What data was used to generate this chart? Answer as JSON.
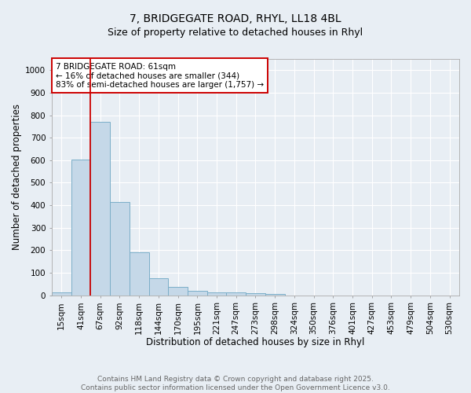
{
  "title_line1": "7, BRIDGEGATE ROAD, RHYL, LL18 4BL",
  "title_line2": "Size of property relative to detached houses in Rhyl",
  "xlabel": "Distribution of detached houses by size in Rhyl",
  "ylabel": "Number of detached properties",
  "categories": [
    "15sqm",
    "41sqm",
    "67sqm",
    "92sqm",
    "118sqm",
    "144sqm",
    "170sqm",
    "195sqm",
    "221sqm",
    "247sqm",
    "273sqm",
    "298sqm",
    "324sqm",
    "350sqm",
    "376sqm",
    "401sqm",
    "427sqm",
    "453sqm",
    "479sqm",
    "504sqm",
    "530sqm"
  ],
  "values": [
    13,
    602,
    770,
    413,
    192,
    75,
    37,
    18,
    13,
    13,
    8,
    5,
    0,
    0,
    0,
    0,
    0,
    0,
    0,
    0,
    0
  ],
  "bar_color": "#c5d8e8",
  "bar_edge_color": "#7baec8",
  "vline_x_index": 2,
  "vline_color": "#cc0000",
  "annotation_text": "7 BRIDGEGATE ROAD: 61sqm\n← 16% of detached houses are smaller (344)\n83% of semi-detached houses are larger (1,757) →",
  "annotation_box_facecolor": "#ffffff",
  "annotation_box_edgecolor": "#cc0000",
  "ylim": [
    0,
    1050
  ],
  "yticks": [
    0,
    100,
    200,
    300,
    400,
    500,
    600,
    700,
    800,
    900,
    1000
  ],
  "footer_text": "Contains HM Land Registry data © Crown copyright and database right 2025.\nContains public sector information licensed under the Open Government Licence v3.0.",
  "bg_color": "#e8eef4",
  "plot_bg_color": "#e8eef4",
  "grid_color": "#ffffff",
  "title_fontsize": 10,
  "subtitle_fontsize": 9,
  "axis_label_fontsize": 8.5,
  "tick_fontsize": 7.5,
  "annotation_fontsize": 7.5,
  "footer_fontsize": 6.5,
  "footer_color": "#666666"
}
